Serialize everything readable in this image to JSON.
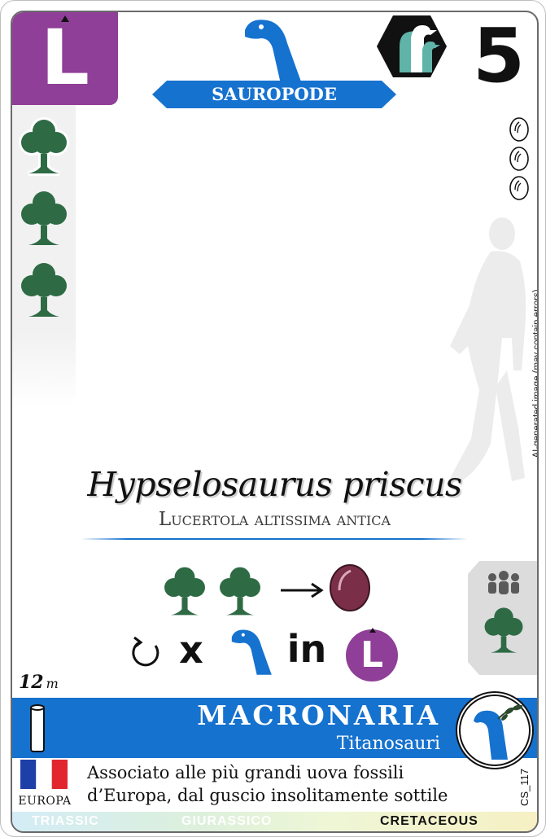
{
  "card": {
    "letter": "L",
    "group": "SAUROPODE",
    "number": "5",
    "scientific_name": "Hypselosaurus priscus",
    "common_name": "Lucertola altissima antica",
    "ai_note": "AI-generated image (may contain errors)",
    "ability": {
      "x_label": "x",
      "in_label": "in",
      "letter": "L"
    },
    "size": {
      "value": "12",
      "unit": "m"
    },
    "family": "MACRONARIA",
    "subfamily": "Titanosauri",
    "region": "EUROPA",
    "description_line1": "Associato alle più grandi uova fossili",
    "description_line2": "d’Europa, dal guscio insolitamente sottile",
    "code": "CS_117",
    "periods": [
      "TRIASSIC",
      "GIURASSICO",
      "CRETACEOUS"
    ],
    "active_period": "CRETACEOUS",
    "diet_trees": 3,
    "egg_count": 3
  },
  "colors": {
    "purple": "#8f3f97",
    "blue": "#1672cf",
    "tree_green": "#2e6b45",
    "egg": "#7a2e48"
  }
}
